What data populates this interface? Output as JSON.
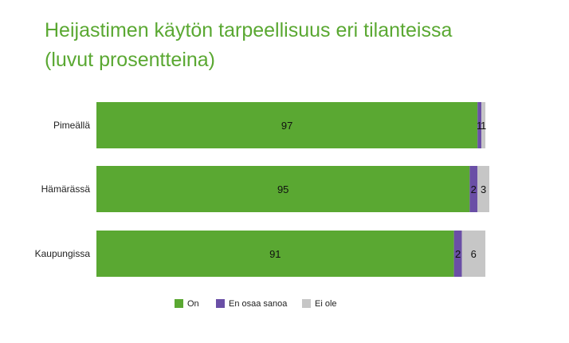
{
  "chart_data": {
    "type": "bar",
    "orientation": "horizontal",
    "stacked": true,
    "title_lines": [
      "Heijastimen käytön tarpeellisuus eri tilanteissa",
      "(luvut prosentteina)"
    ],
    "categories": [
      "Pimeällä",
      "Hämärässä",
      "Kaupungissa"
    ],
    "series": [
      {
        "name": "On",
        "values": [
          97,
          95,
          91
        ],
        "color": "#5aa832"
      },
      {
        "name": "En osaa sanoa",
        "values": [
          1,
          2,
          2
        ],
        "color": "#6a4fa6"
      },
      {
        "name": "Ei ole",
        "values": [
          1,
          3,
          6
        ],
        "color": "#c6c6c6"
      }
    ],
    "xlim": [
      0,
      100
    ],
    "grid": false,
    "legend_position": "bottom"
  }
}
